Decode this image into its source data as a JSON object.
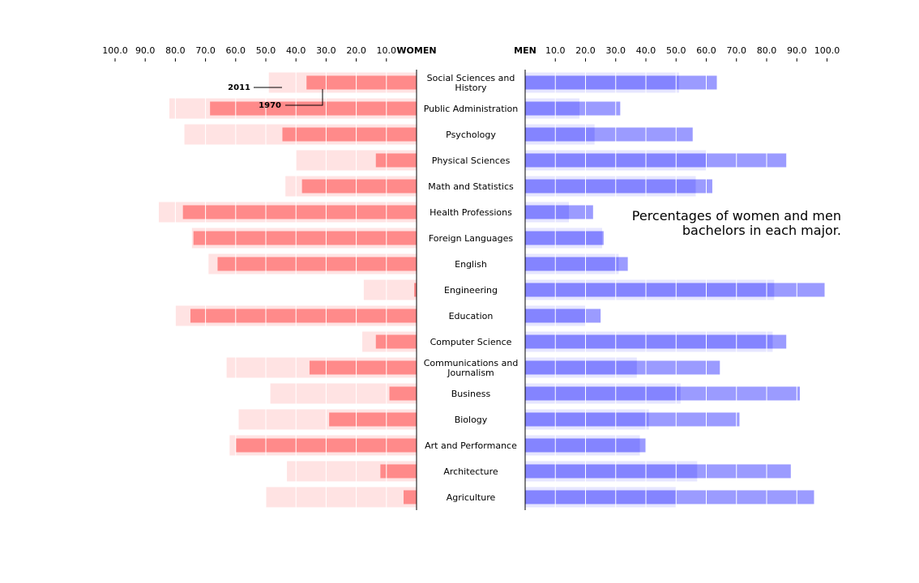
{
  "chart_data": {
    "type": "bar",
    "title": "",
    "note_lines": [
      "Percentages of women and men",
      "bachelors in each major."
    ],
    "left_label": "WOMEN",
    "right_label": "MEN",
    "xlim": [
      0,
      100
    ],
    "ticks": [
      "10.0",
      "20.0",
      "30.0",
      "40.0",
      "50.0",
      "60.0",
      "70.0",
      "80.0",
      "90.0",
      "100.0"
    ],
    "annotations": {
      "year_2011": "2011",
      "year_1970": "1970"
    },
    "colors": {
      "women_2011": "#ff8a8a",
      "women_1970": "#ffe3e3",
      "men_2011": "#9b9bff",
      "men_1970": "#e6e6ff",
      "men_overlap": "#8484ff"
    },
    "categories": [
      [
        "Social Sciences and",
        "History"
      ],
      [
        "Public Administration"
      ],
      [
        "Psychology"
      ],
      [
        "Physical Sciences"
      ],
      [
        "Math and Statistics"
      ],
      [
        "Health Professions"
      ],
      [
        "Foreign Languages"
      ],
      [
        "English"
      ],
      [
        "Engineering"
      ],
      [
        "Education"
      ],
      [
        "Computer Science"
      ],
      [
        "Communications and",
        "Journalism"
      ],
      [
        "Business"
      ],
      [
        "Biology"
      ],
      [
        "Art and Performance"
      ],
      [
        "Architecture"
      ],
      [
        "Agriculture"
      ]
    ],
    "series": [
      {
        "name": "Women 2011",
        "values": [
          36.5,
          68.5,
          44.5,
          13.5,
          38.0,
          77.5,
          74.0,
          66.0,
          0.8,
          75.0,
          13.5,
          35.5,
          9.0,
          29.0,
          60.0,
          12.0,
          4.3
        ]
      },
      {
        "name": "Women 1970",
        "values": [
          49.0,
          82.0,
          77.0,
          40.0,
          43.5,
          85.5,
          74.5,
          69.0,
          17.5,
          80.0,
          18.0,
          63.0,
          48.5,
          59.0,
          62.0,
          43.0,
          50.0
        ]
      },
      {
        "name": "Men 2011",
        "values": [
          63.5,
          31.5,
          55.5,
          86.5,
          62.0,
          22.5,
          26.0,
          34.0,
          99.2,
          25.0,
          86.5,
          64.5,
          91.0,
          71.0,
          40.0,
          88.0,
          95.7
        ]
      },
      {
        "name": "Men 1970",
        "values": [
          51.0,
          18.0,
          23.0,
          60.0,
          56.5,
          14.5,
          25.5,
          31.0,
          82.5,
          20.0,
          82.0,
          37.0,
          51.5,
          41.0,
          38.0,
          57.0,
          50.0
        ]
      }
    ]
  }
}
